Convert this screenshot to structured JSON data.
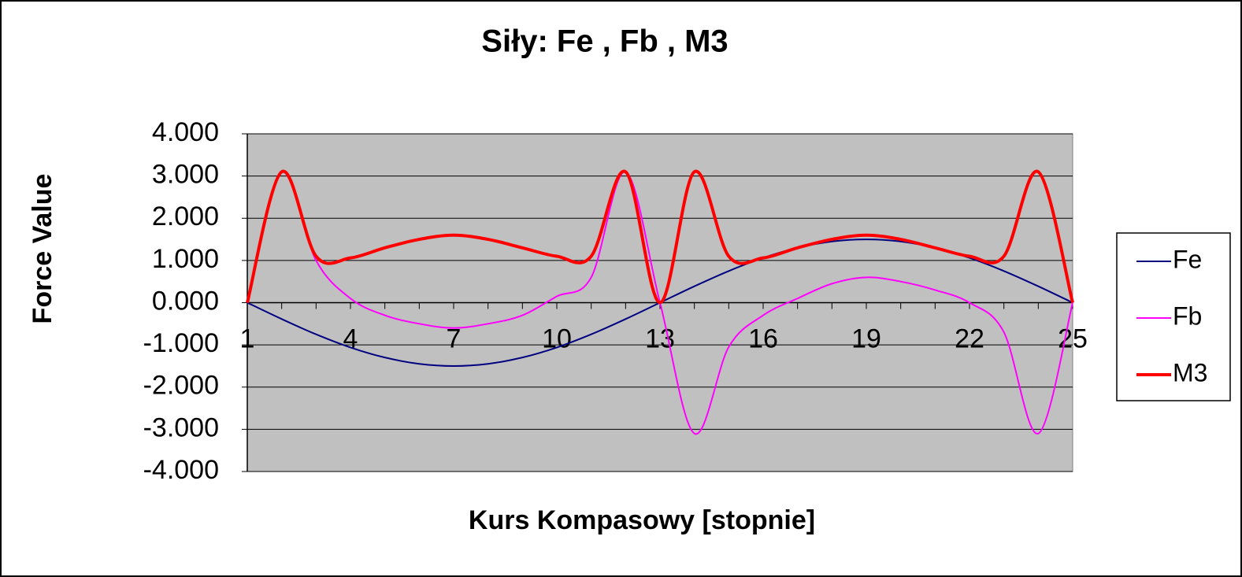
{
  "chart_data": {
    "type": "line",
    "title": "Siły:  Fe , Fb , M3",
    "x_label": "Kurs Kompasowy  [stopnie]",
    "y_label": "Force Value",
    "categories": [
      "1",
      null,
      null,
      "4",
      null,
      null,
      "7",
      null,
      null,
      "10",
      null,
      null,
      "13",
      null,
      null,
      "16",
      null,
      null,
      "19",
      null,
      null,
      "22",
      null,
      null,
      "25"
    ],
    "series": [
      {
        "name": "Fe",
        "color": "#000080",
        "values": [
          0,
          -0.388,
          -0.75,
          -1.061,
          -1.299,
          -1.449,
          -1.5,
          -1.449,
          -1.299,
          -1.061,
          -0.75,
          -0.388,
          0,
          0.388,
          0.75,
          1.061,
          1.299,
          1.449,
          1.5,
          1.449,
          1.299,
          1.061,
          0.75,
          0.388,
          0
        ]
      },
      {
        "name": "Fb",
        "color": "#ff00ff",
        "values": [
          0,
          3.1,
          1.0,
          0.1,
          -0.3,
          -0.5,
          -0.6,
          -0.5,
          -0.3,
          0.15,
          0.6,
          3.1,
          0,
          -3.1,
          -1.05,
          -0.3,
          0.1,
          0.45,
          0.6,
          0.5,
          0.3,
          0,
          -0.7,
          -3.1,
          0
        ]
      },
      {
        "name": "M3",
        "color": "#ff0000",
        "values": [
          0,
          3.1,
          1.1,
          1.06,
          1.3,
          1.5,
          1.6,
          1.5,
          1.3,
          1.1,
          1.1,
          3.1,
          0,
          3.1,
          1.1,
          1.06,
          1.3,
          1.5,
          1.6,
          1.5,
          1.3,
          1.1,
          1.1,
          3.1,
          0
        ]
      }
    ],
    "ylim": [
      -4,
      4
    ],
    "yticks": [
      {
        "value": -4,
        "label": "-4.000"
      },
      {
        "value": -3,
        "label": "-3.000"
      },
      {
        "value": -2,
        "label": "-2.000"
      },
      {
        "value": -1,
        "label": "-1.000"
      },
      {
        "value": 0,
        "label": "0.000"
      },
      {
        "value": 1,
        "label": "1.000"
      },
      {
        "value": 2,
        "label": "2.000"
      },
      {
        "value": 3,
        "label": "3.000"
      },
      {
        "value": 4,
        "label": "4.000"
      }
    ],
    "grid": true,
    "legend": "right"
  }
}
